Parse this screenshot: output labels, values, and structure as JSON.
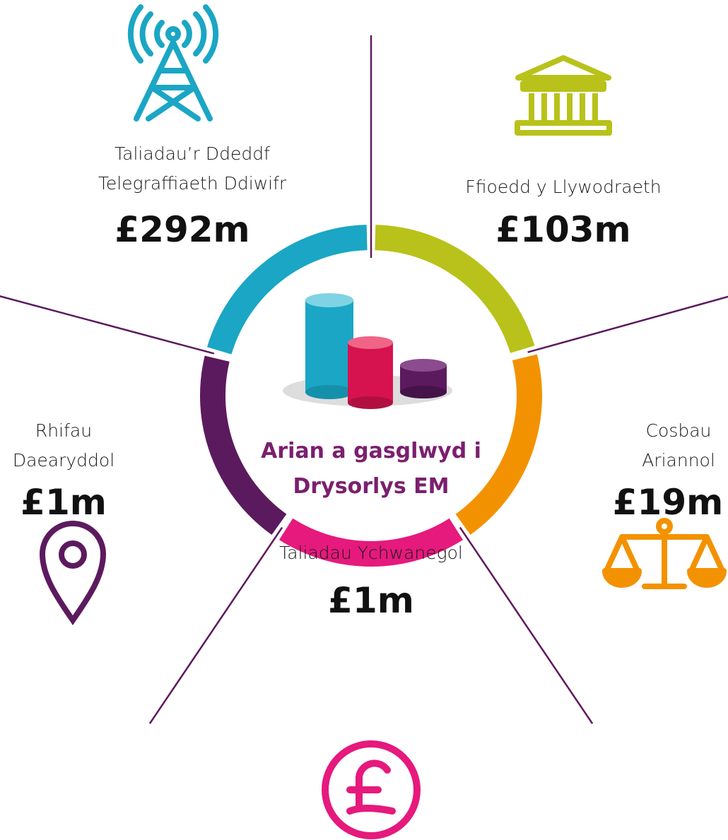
{
  "center": {
    "title_lines": [
      "Arian a gasglwyd i",
      "Drysorlys EM"
    ]
  },
  "segments": [
    {
      "label_lines": [
        "Taliadau’r Ddeddf",
        "Telegraffiaeth Ddiwifr"
      ],
      "amount": "£292m"
    },
    {
      "label_lines": [
        "Ffioedd y Llywodraeth"
      ],
      "amount": "£103m"
    },
    {
      "label_lines": [
        "Cosbau",
        "Ariannol"
      ],
      "amount": "£19m"
    },
    {
      "label_lines": [
        "Taliadau Ychwanegol"
      ],
      "amount": "£1m"
    },
    {
      "label_lines": [
        "Rhifau",
        "Daearyddol"
      ],
      "amount": "£1m"
    }
  ]
}
